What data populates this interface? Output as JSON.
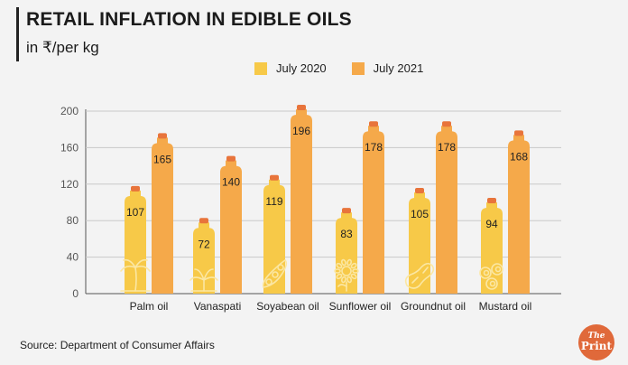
{
  "header": {
    "title": "RETAIL INFLATION IN EDIBLE OILS",
    "subtitle": "in ₹/per kg"
  },
  "footer": {
    "source": "Source: Department of Consumer Affairs",
    "logo_top": "The",
    "logo_bottom": "Print"
  },
  "chart_data": {
    "type": "bar",
    "title": "RETAIL INFLATION IN EDIBLE OILS",
    "subtitle": "in ₹/per kg",
    "categories": [
      "Palm oil",
      "Vanaspati",
      "Soyabean oil",
      "Sunflower oil",
      "Groundnut oil",
      "Mustard oil"
    ],
    "series": [
      {
        "name": "July 2020",
        "color": "#f7c948",
        "values": [
          107,
          72,
          119,
          83,
          105,
          94
        ]
      },
      {
        "name": "July 2021",
        "color": "#f5a94a",
        "values": [
          165,
          140,
          196,
          178,
          178,
          168
        ]
      }
    ],
    "ylim": [
      0,
      200
    ],
    "yticks": [
      0,
      40,
      80,
      120,
      160,
      200
    ],
    "grid": true,
    "legend": "top-center",
    "cap_color": "#e8743b",
    "icons": [
      "palm-tree-icon",
      "palm-leaves-icon",
      "soybean-pod-icon",
      "sunflower-icon",
      "groundnut-icon",
      "mustard-seeds-icon"
    ]
  }
}
